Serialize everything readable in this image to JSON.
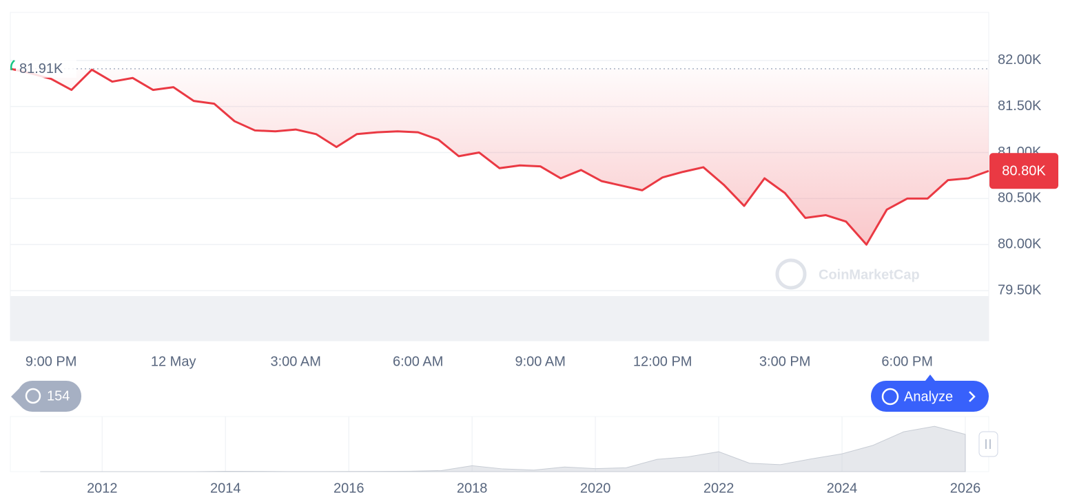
{
  "chart_data": [
    {
      "type": "line",
      "color": "#ea3943",
      "categories": [
        null,
        null,
        "9:00 PM",
        null,
        null,
        null,
        null,
        null,
        "12 May",
        null,
        null,
        null,
        null,
        null,
        "3:00 AM",
        null,
        null,
        null,
        null,
        null,
        "6:00 AM",
        null,
        null,
        null,
        null,
        null,
        "9:00 AM",
        null,
        null,
        null,
        null,
        null,
        "12:00 PM",
        null,
        null,
        null,
        null,
        null,
        "3:00 PM",
        null,
        null,
        null,
        null,
        null,
        "6:00 PM",
        null,
        null,
        null,
        null
      ],
      "values": [
        81910,
        81860,
        81800,
        81680,
        81900,
        81770,
        81810,
        81680,
        81710,
        81560,
        81530,
        81340,
        81240,
        81230,
        81250,
        81200,
        81060,
        81200,
        81220,
        81230,
        81220,
        81140,
        80960,
        81000,
        80830,
        80860,
        80850,
        80720,
        80810,
        80690,
        80640,
        80590,
        80730,
        80790,
        80840,
        80650,
        80420,
        80720,
        80560,
        80290,
        80320,
        80250,
        80000,
        80380,
        80500,
        80500,
        80700,
        80720,
        80800
      ],
      "ylim": [
        78955,
        82522
      ],
      "yticks": [
        {
          "value": 79500,
          "label": "79.50K"
        },
        {
          "value": 80000,
          "label": "80.00K"
        },
        {
          "value": 80500,
          "label": "80.50K"
        },
        {
          "value": 81000,
          "label": "81.00K"
        },
        {
          "value": 81500,
          "label": "81.50K"
        },
        {
          "value": 82000,
          "label": "82.00K"
        }
      ],
      "grid": true,
      "open_label": {
        "value": 81910,
        "label": "81.91K"
      },
      "last_label": {
        "value": 80800,
        "label": "80.80K"
      }
    },
    {
      "type": "area",
      "color": "#c7ccd4",
      "x": [
        2011,
        2011.5,
        2012,
        2012.5,
        2013,
        2013.5,
        2014,
        2014.5,
        2015,
        2015.5,
        2016,
        2016.5,
        2017,
        2017.5,
        2018,
        2018.5,
        2019,
        2019.5,
        2020,
        2020.5,
        2021,
        2021.5,
        2022,
        2022.5,
        2023,
        2023.5,
        2024,
        2024.5,
        2025,
        2025.5,
        2026
      ],
      "values": [
        1,
        15,
        5,
        7,
        13,
        100,
        800,
        600,
        300,
        250,
        430,
        650,
        1000,
        2500,
        14000,
        6400,
        3700,
        11000,
        7200,
        9100,
        29000,
        35000,
        47000,
        20000,
        16500,
        30000,
        42000,
        62000,
        94000,
        107000,
        88000
      ],
      "xlim": [
        2010.51,
        2026.38
      ],
      "xticks": [
        2012,
        2014,
        2016,
        2018,
        2020,
        2022,
        2024,
        2026
      ],
      "ylim": [
        0,
        130000
      ]
    }
  ],
  "ui": {
    "history_count": "154",
    "analyze_button": "Analyze",
    "watermark": "CoinMarketCap"
  }
}
